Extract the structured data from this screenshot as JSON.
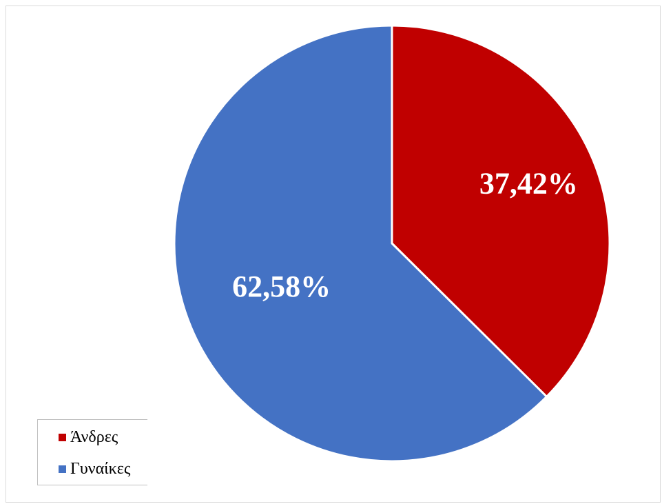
{
  "chart_data": {
    "type": "pie",
    "categories": [
      "Άνδρες",
      "Γυναίκες"
    ],
    "values": [
      37.42,
      62.58
    ],
    "labels": [
      "37,42%",
      "62,58%"
    ],
    "colors": [
      "#C00000",
      "#4472C4"
    ],
    "legend_position": "bottom-left",
    "start_angle_deg": 0,
    "direction": "clockwise"
  }
}
